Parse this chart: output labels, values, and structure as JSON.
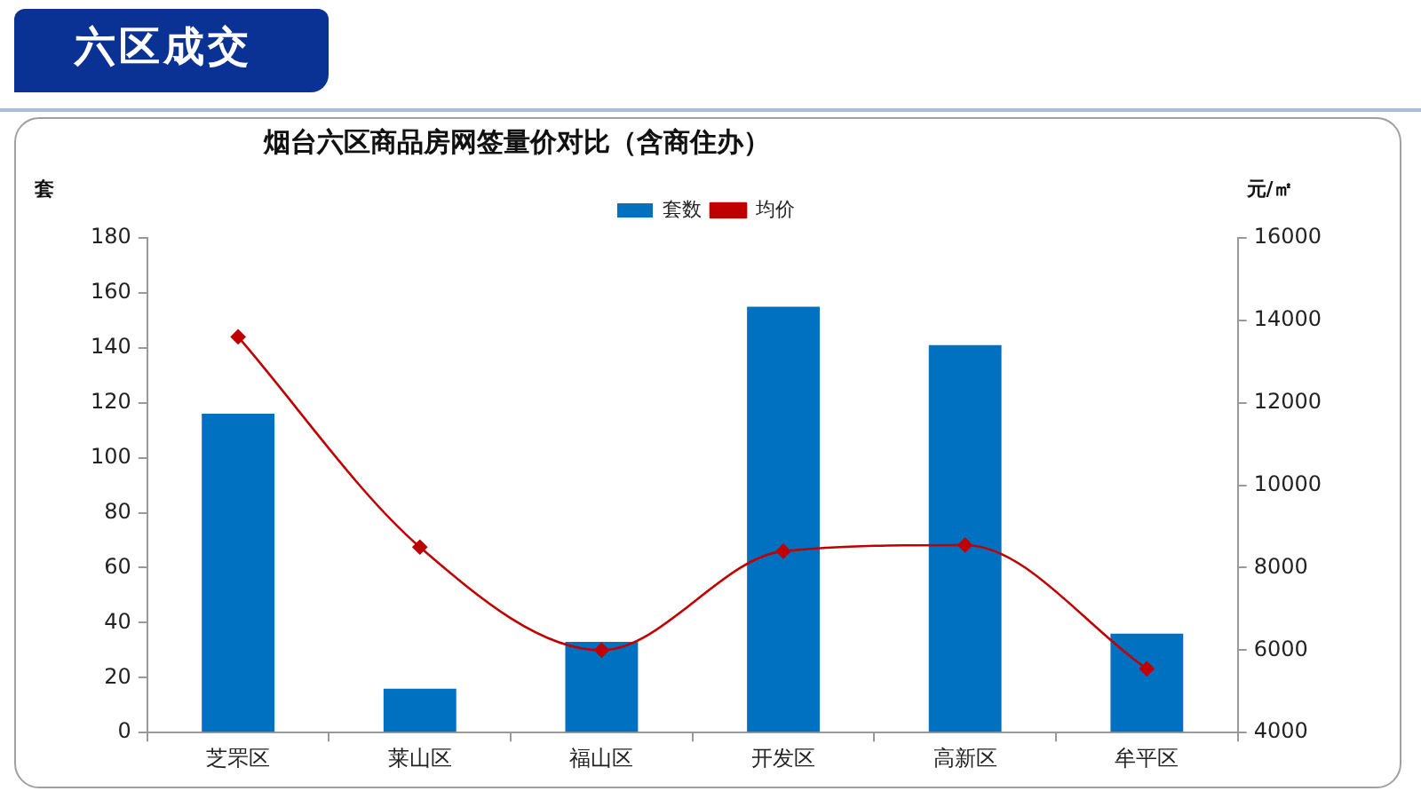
{
  "chart_data": {
    "type": "bar",
    "title": "烟台六区商品房网签量价对比（含商住办）",
    "ylabel": "套",
    "y2label": "元/㎡",
    "annotations": [
      "六区成交"
    ],
    "categories": [
      "芝罘区",
      "莱山区",
      "福山区",
      "开发区",
      "高新区",
      "牟平区"
    ],
    "series": [
      {
        "name": "套数",
        "color": "#0070c0",
        "values": [
          116,
          16,
          33,
          155,
          141,
          36
        ]
      },
      {
        "name": "均价",
        "type": "line",
        "axis": "y2",
        "color": "#c00000",
        "values": [
          13600,
          8500,
          6000,
          8400,
          8550,
          5550
        ]
      }
    ],
    "ylim": [
      0,
      180
    ],
    "yticks": [
      0,
      20,
      40,
      60,
      80,
      100,
      120,
      140,
      160,
      180
    ],
    "y2lim": [
      4000,
      16000
    ],
    "y2ticks": [
      4000,
      6000,
      8000,
      10000,
      12000,
      14000,
      16000
    ],
    "legend": "top",
    "marker": "diamond"
  }
}
